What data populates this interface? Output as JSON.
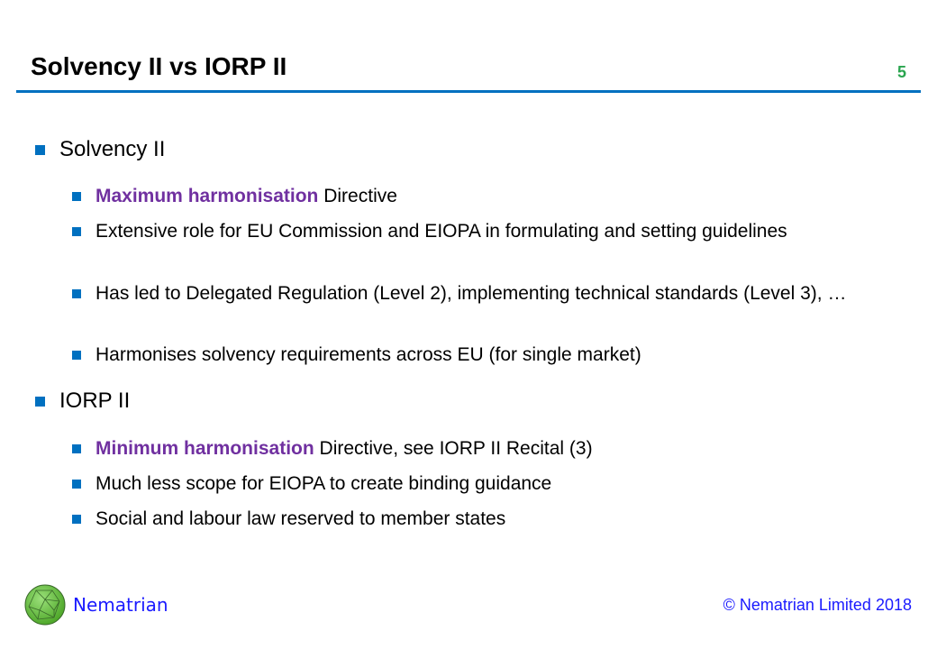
{
  "header": {
    "title": "Solvency II vs IORP II",
    "page_number": "5"
  },
  "sections": [
    {
      "heading": "Solvency II",
      "items": [
        {
          "highlight": "Maximum harmonisation",
          "text": " Directive"
        },
        {
          "highlight": "",
          "text": "Extensive role for EU Commission and EIOPA in formulating and setting guidelines"
        },
        {
          "highlight": "",
          "text": "Has led to Delegated Regulation (Level 2), implementing technical standards (Level 3), …"
        },
        {
          "highlight": "",
          "text": "Harmonises solvency requirements across EU (for single market)"
        }
      ]
    },
    {
      "heading": "IORP II",
      "items": [
        {
          "highlight": "Minimum harmonisation",
          "text": " Directive, see IORP II Recital (3)"
        },
        {
          "highlight": "",
          "text": "Much less scope for EIOPA to create binding guidance"
        },
        {
          "highlight": "",
          "text": "Social and labour law reserved to member states"
        }
      ]
    }
  ],
  "footer": {
    "brand": "Nematrian",
    "copyright": "© Nematrian Limited 2018"
  },
  "colors": {
    "accent": "#0070c0",
    "highlight": "#7030a0",
    "brand": "#1a1aff"
  }
}
